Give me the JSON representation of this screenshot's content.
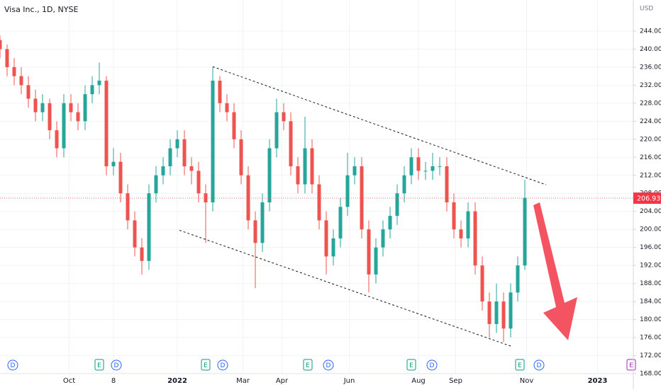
{
  "chart_data": {
    "type": "candlestick",
    "title": "Visa Inc., 1D, NYSE",
    "currency": "USD",
    "up_color": "#26a69a",
    "down_color": "#ef5350",
    "grid": true,
    "x": [
      0,
      4,
      8,
      12,
      16,
      20,
      24,
      28,
      32,
      36,
      40,
      44,
      48,
      52,
      56,
      60,
      64,
      68,
      72,
      76,
      80,
      84,
      88,
      92,
      96,
      100,
      104,
      108,
      112,
      116,
      120,
      124,
      128,
      132,
      136,
      140,
      144,
      148,
      152,
      156,
      160,
      164,
      168,
      172,
      176,
      180,
      184,
      188,
      192,
      196,
      200,
      204,
      208,
      212,
      216,
      220,
      224,
      228,
      232,
      236,
      240,
      244,
      248,
      252,
      256,
      260,
      264,
      268,
      272,
      276,
      280,
      284,
      288,
      292,
      296
    ],
    "open": [
      242,
      240,
      236,
      234,
      232,
      229,
      226,
      228,
      222,
      218,
      228,
      226,
      224,
      230,
      232,
      233,
      214,
      215,
      208,
      202,
      196,
      193,
      208,
      212,
      214,
      218,
      220,
      214,
      213,
      208,
      206,
      233,
      228,
      226,
      220,
      212,
      202,
      197,
      206,
      218,
      226,
      224,
      214,
      210,
      218,
      210,
      202,
      194,
      198,
      205,
      212,
      214,
      200,
      190,
      196,
      200,
      203,
      208,
      212,
      216,
      213,
      213,
      214,
      214,
      206,
      200,
      198,
      204,
      192,
      184,
      179,
      184,
      178,
      186,
      192
    ],
    "high": [
      243,
      241,
      238,
      236,
      234,
      231,
      230,
      229,
      224,
      230,
      230,
      228,
      232,
      234,
      237,
      234,
      218,
      217,
      210,
      204,
      198,
      210,
      214,
      216,
      220,
      222,
      222,
      216,
      215,
      210,
      236,
      234,
      230,
      228,
      222,
      214,
      204,
      208,
      220,
      229,
      228,
      226,
      216,
      225,
      220,
      212,
      204,
      200,
      207,
      217,
      216,
      216,
      202,
      198,
      202,
      205,
      210,
      214,
      218,
      218,
      215,
      217,
      216,
      216,
      208,
      202,
      206,
      206,
      194,
      186,
      188,
      186,
      188,
      194,
      211
    ],
    "low": [
      238,
      234,
      232,
      230,
      227,
      224,
      224,
      220,
      216,
      216,
      224,
      222,
      222,
      228,
      230,
      212,
      212,
      206,
      200,
      194,
      190,
      191,
      206,
      210,
      212,
      216,
      212,
      210,
      206,
      197,
      204,
      226,
      224,
      218,
      210,
      200,
      187,
      195,
      204,
      216,
      222,
      212,
      208,
      208,
      208,
      200,
      190,
      192,
      196,
      203,
      210,
      198,
      186,
      188,
      194,
      198,
      201,
      206,
      210,
      211,
      211,
      211,
      212,
      204,
      198,
      196,
      196,
      190,
      182,
      176,
      177,
      175,
      176,
      184,
      191
    ],
    "close": [
      240,
      236,
      234,
      232,
      229,
      226,
      228,
      222,
      218,
      228,
      226,
      224,
      230,
      232,
      233,
      214,
      215,
      208,
      202,
      196,
      193,
      208,
      212,
      214,
      218,
      220,
      214,
      213,
      208,
      206,
      233,
      228,
      226,
      220,
      212,
      202,
      197,
      206,
      218,
      226,
      224,
      214,
      210,
      218,
      210,
      202,
      194,
      198,
      205,
      212,
      214,
      200,
      190,
      196,
      200,
      203,
      208,
      212,
      216,
      213,
      213,
      214,
      214,
      206,
      200,
      198,
      204,
      192,
      184,
      179,
      184,
      178,
      186,
      192,
      207
    ],
    "last_price": 206.93,
    "xlim": [
      0,
      357.2
    ],
    "ylim": [
      168,
      250.9
    ],
    "xticks": [
      {
        "value": 39,
        "label": "Oct"
      },
      {
        "value": 64,
        "label": "8"
      },
      {
        "value": 100,
        "label": "2022"
      },
      {
        "value": 137,
        "label": "Mar"
      },
      {
        "value": 159,
        "label": "Apr"
      },
      {
        "value": 197,
        "label": "Jun"
      },
      {
        "value": 236,
        "label": "Aug"
      },
      {
        "value": 257,
        "label": "Sep"
      },
      {
        "value": 297,
        "label": "Nov"
      },
      {
        "value": 337,
        "label": "2023"
      }
    ],
    "yticks": [
      {
        "value": 168,
        "label": "168.00"
      },
      {
        "value": 172,
        "label": "172.00"
      },
      {
        "value": 176,
        "label": "176.00"
      },
      {
        "value": 180,
        "label": "180.00"
      },
      {
        "value": 184,
        "label": "184.00"
      },
      {
        "value": 188,
        "label": "188.00"
      },
      {
        "value": 192,
        "label": "192.00"
      },
      {
        "value": 196,
        "label": "196.00"
      },
      {
        "value": 200,
        "label": "200.00"
      },
      {
        "value": 204,
        "label": "204.00"
      },
      {
        "value": 208,
        "label": "208.00"
      },
      {
        "value": 212,
        "label": "212.00"
      },
      {
        "value": 216,
        "label": "216.00"
      },
      {
        "value": 220,
        "label": "220.00"
      },
      {
        "value": 224,
        "label": "224.00"
      },
      {
        "value": 228,
        "label": "228.00"
      },
      {
        "value": 232,
        "label": "232.00"
      },
      {
        "value": 236,
        "label": "236.00"
      },
      {
        "value": 240,
        "label": "240.00"
      },
      {
        "value": 244,
        "label": "244.00"
      }
    ],
    "trendlines": [
      {
        "x": [
          120,
          308
        ],
        "y": [
          236.1,
          209.9
        ]
      },
      {
        "x": [
          101.2,
          288.8
        ],
        "y": [
          199.8,
          174
        ]
      }
    ],
    "events": [
      {
        "label": "D",
        "x": 7.2,
        "color": "#2962ff"
      },
      {
        "label": "E",
        "x": 56,
        "color": "#089981"
      },
      {
        "label": "D",
        "x": 65.6,
        "color": "#2962ff"
      },
      {
        "label": "E",
        "x": 116,
        "color": "#089981"
      },
      {
        "label": "D",
        "x": 125.6,
        "color": "#2962ff"
      },
      {
        "label": "E",
        "x": 173.6,
        "color": "#089981"
      },
      {
        "label": "D",
        "x": 185.2,
        "color": "#2962ff"
      },
      {
        "label": "E",
        "x": 232,
        "color": "#089981"
      },
      {
        "label": "D",
        "x": 243.6,
        "color": "#2962ff"
      },
      {
        "label": "E",
        "x": 293.2,
        "color": "#089981"
      },
      {
        "label": "D",
        "x": 304,
        "color": "#2962ff"
      },
      {
        "label": "E",
        "x": 356,
        "color": "#9c27b0"
      }
    ]
  }
}
